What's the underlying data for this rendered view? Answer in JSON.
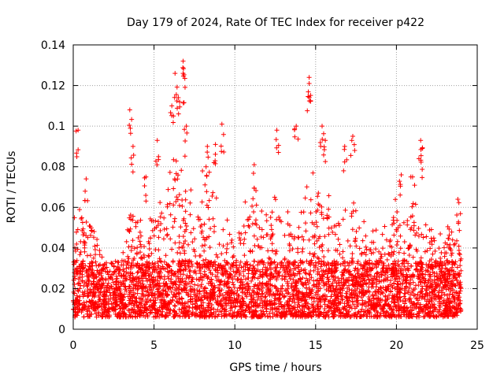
{
  "chart_data": {
    "type": "scatter",
    "title": "Day 179 of 2024, Rate Of TEC Index for receiver p422",
    "xlabel": "GPS time / hours",
    "ylabel": "ROTI / TECUs",
    "xlim": [
      0,
      25
    ],
    "ylim": [
      0,
      0.14
    ],
    "xticks": [
      "0",
      "5",
      "10",
      "15",
      "20",
      "25"
    ],
    "yticks": [
      "0",
      "0.02",
      "0.04",
      "0.06",
      "0.08",
      "0.1",
      "0.12",
      "0.14"
    ],
    "grid": true,
    "marker": "plus",
    "color": "#ff0000",
    "series": [
      {
        "name": "ROTI",
        "envelope": {
          "hours": [
            0,
            0.5,
            1,
            1.5,
            2,
            2.5,
            3,
            3.5,
            4,
            4.5,
            5,
            5.5,
            6,
            6.5,
            7,
            7.5,
            8,
            8.5,
            9,
            9.5,
            10,
            10.5,
            11,
            11.5,
            12,
            12.5,
            13,
            13.5,
            14,
            14.5,
            15,
            15.5,
            16,
            16.5,
            17,
            17.5,
            18,
            18.5,
            19,
            19.5,
            20,
            20.5,
            21,
            21.5,
            22,
            22.5,
            23,
            23.5,
            24
          ],
          "typical_max": [
            0.055,
            0.065,
            0.06,
            0.045,
            0.03,
            0.025,
            0.035,
            0.07,
            0.06,
            0.055,
            0.065,
            0.07,
            0.09,
            0.1,
            0.09,
            0.075,
            0.08,
            0.085,
            0.08,
            0.06,
            0.05,
            0.06,
            0.07,
            0.065,
            0.06,
            0.075,
            0.065,
            0.06,
            0.065,
            0.075,
            0.08,
            0.07,
            0.065,
            0.06,
            0.07,
            0.06,
            0.055,
            0.05,
            0.05,
            0.06,
            0.065,
            0.06,
            0.07,
            0.055,
            0.05,
            0.05,
            0.05,
            0.055,
            0.06
          ]
        },
        "peaks": [
          {
            "x": 0.3,
            "y": 0.098
          },
          {
            "x": 0.8,
            "y": 0.074
          },
          {
            "x": 3.5,
            "y": 0.108
          },
          {
            "x": 3.7,
            "y": 0.09
          },
          {
            "x": 4.5,
            "y": 0.075
          },
          {
            "x": 5.2,
            "y": 0.093
          },
          {
            "x": 6.1,
            "y": 0.11
          },
          {
            "x": 6.3,
            "y": 0.126
          },
          {
            "x": 6.5,
            "y": 0.114
          },
          {
            "x": 6.8,
            "y": 0.132
          },
          {
            "x": 6.8,
            "y": 0.126
          },
          {
            "x": 7.0,
            "y": 0.1
          },
          {
            "x": 8.3,
            "y": 0.09
          },
          {
            "x": 8.8,
            "y": 0.091
          },
          {
            "x": 9.2,
            "y": 0.101
          },
          {
            "x": 11.2,
            "y": 0.081
          },
          {
            "x": 12.6,
            "y": 0.098
          },
          {
            "x": 13.8,
            "y": 0.1
          },
          {
            "x": 14.6,
            "y": 0.124
          },
          {
            "x": 14.6,
            "y": 0.121
          },
          {
            "x": 15.4,
            "y": 0.1
          },
          {
            "x": 15.6,
            "y": 0.093
          },
          {
            "x": 16.8,
            "y": 0.09
          },
          {
            "x": 17.3,
            "y": 0.095
          },
          {
            "x": 20.3,
            "y": 0.076
          },
          {
            "x": 21.0,
            "y": 0.075
          },
          {
            "x": 21.5,
            "y": 0.093
          },
          {
            "x": 21.6,
            "y": 0.089
          },
          {
            "x": 23.8,
            "y": 0.064
          }
        ]
      }
    ]
  }
}
